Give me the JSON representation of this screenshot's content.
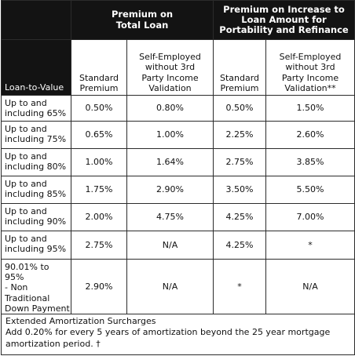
{
  "header": {
    "group_total": "Premium on\nTotal Loan",
    "group_increase": "Premium on Increase to\nLoan Amount for\nPortability and Refinance",
    "ltv_label": "Loan-to-Value",
    "col_standard_1": "Standard\nPremium",
    "col_self_1": "Self-Employed\nwithout 3rd\nParty Income\nValidation",
    "col_standard_2": "Standard\nPremium",
    "col_self_2": "Self-Employed\nwithout 3rd\nParty Income\nValidation**"
  },
  "rows": [
    {
      "ltv": "Up to and\nincluding 65%",
      "std_total": "0.50%",
      "self_total": "0.80%",
      "std_inc": "0.50%",
      "self_inc": "1.50%"
    },
    {
      "ltv": "Up to and\nincluding 75%",
      "std_total": "0.65%",
      "self_total": "1.00%",
      "std_inc": "2.25%",
      "self_inc": "2.60%"
    },
    {
      "ltv": "Up to and\nincluding 80%",
      "std_total": "1.00%",
      "self_total": "1.64%",
      "std_inc": "2.75%",
      "self_inc": "3.85%"
    },
    {
      "ltv": "Up to and\nincluding 85%",
      "std_total": "1.75%",
      "self_total": "2.90%",
      "std_inc": "3.50%",
      "self_inc": "5.50%"
    },
    {
      "ltv": "Up to and\nincluding 90%",
      "std_total": "2.00%",
      "self_total": "4.75%",
      "std_inc": "4.25%",
      "self_inc": "7.00%"
    },
    {
      "ltv": "Up to and\nincluding 95%",
      "std_total": "2.75%",
      "self_total": "N/A",
      "std_inc": "4.25%",
      "self_inc": "*"
    },
    {
      "ltv": "90.01% to 95%\n- Non\nTraditional\nDown Payment",
      "std_total": "2.90%",
      "self_total": "N/A",
      "std_inc": "*",
      "self_inc": "N/A"
    }
  ],
  "footer": {
    "title": "Extended Amortization Surcharges",
    "text": "Add 0.20% for every 5 years of amortization beyond the 25 year mortgage amortization period. †"
  }
}
